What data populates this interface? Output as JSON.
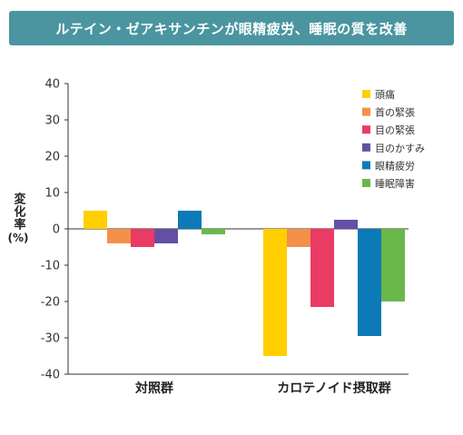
{
  "title": "ルテイン・ゼアキサンチンが眼精疲労、睡眠の質を改善",
  "chart_data": {
    "type": "bar",
    "ylabel": "変化率",
    "ylabel_unit": "(%)",
    "ylim": [
      -40,
      40
    ],
    "yticks": [
      40,
      30,
      20,
      10,
      0,
      -10,
      -20,
      -30,
      -40
    ],
    "grid": false,
    "legend_placement": "top-right",
    "categories": [
      "対照群",
      "カロテノイド摂取群"
    ],
    "series": [
      {
        "name": "頭痛",
        "color": "#ffcf00",
        "values": [
          5,
          -35
        ]
      },
      {
        "name": "首の緊張",
        "color": "#f39149",
        "values": [
          -4,
          -5
        ]
      },
      {
        "name": "目の緊張",
        "color": "#e93b63",
        "values": [
          -5,
          -21.5
        ]
      },
      {
        "name": "目のかすみ",
        "color": "#6350a4",
        "values": [
          -4,
          2.5
        ]
      },
      {
        "name": "眼精疲労",
        "color": "#0b7ab6",
        "values": [
          5,
          -29.5
        ]
      },
      {
        "name": "睡眠障害",
        "color": "#6bb84a",
        "values": [
          -1.5,
          -20
        ]
      }
    ]
  }
}
